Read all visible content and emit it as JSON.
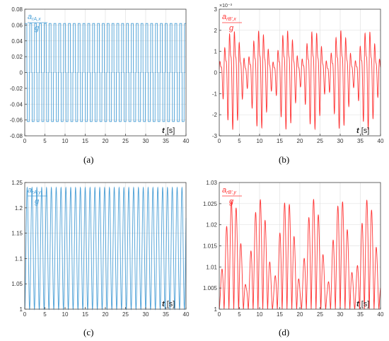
{
  "captions": [
    "(a)",
    "(b)",
    "(c)",
    "(d)"
  ],
  "chart_data": [
    {
      "id": "a",
      "type": "line",
      "title": "",
      "ylabel_num": "a_rA,x",
      "ylabel_den": "g",
      "xlabel_var": "t",
      "xlabel_unit": "[s]",
      "xlim": [
        0,
        40
      ],
      "ylim": [
        -0.08,
        0.08
      ],
      "xticks": [
        "0",
        "5",
        "10",
        "15",
        "20",
        "25",
        "30",
        "35",
        "40"
      ],
      "yticks": [
        "-0.08",
        "-0.06",
        "-0.04",
        "-0.02",
        "0",
        "0.02",
        "0.04",
        "0.06",
        "0.08"
      ],
      "color": "#4a9fd6",
      "grid": true,
      "series": [
        {
          "description": "square-like oscillation between +0.06 and -0.06, period 1.2 s, zero dwell between pulses",
          "amplitude": 0.062,
          "period": 1.2
        }
      ]
    },
    {
      "id": "b",
      "type": "line",
      "title": "",
      "ylabel_num": "a_rB',x",
      "ylabel_den": "g",
      "exponent": "×10⁻³",
      "xlabel_var": "t",
      "xlabel_unit": "[s]",
      "xlim": [
        0,
        40
      ],
      "ylim": [
        -3,
        3
      ],
      "xticks": [
        "0",
        "5",
        "10",
        "15",
        "20",
        "25",
        "30",
        "35",
        "40"
      ],
      "yticks": [
        "-3",
        "-2",
        "-1",
        "0",
        "1",
        "2",
        "3"
      ],
      "color": "#ff3333",
      "grid": true,
      "series": [
        {
          "description": "oscillating signal between about -2.8 and 2.8, beat envelope period ~6.7 s",
          "peak": 2.8
        }
      ]
    },
    {
      "id": "c",
      "type": "line",
      "title": "",
      "ylabel_num": "a_rA,y",
      "ylabel_den": "g",
      "xlabel_var": "t",
      "xlabel_unit": "[s]",
      "xlim": [
        0,
        40
      ],
      "ylim": [
        1,
        1.25
      ],
      "xticks": [
        "0",
        "5",
        "10",
        "15",
        "20",
        "25",
        "30",
        "35",
        "40"
      ],
      "yticks": [
        "1",
        "1.05",
        "1.1",
        "1.15",
        "1.2",
        "1.25"
      ],
      "color": "#4a9fd6",
      "grid": true,
      "series": [
        {
          "description": "periodic oscillation between 1.0 and 1.24, period 1.2 s",
          "min": 1.0,
          "max": 1.24,
          "period": 1.2
        }
      ]
    },
    {
      "id": "d",
      "type": "line",
      "title": "",
      "ylabel_num": "a_rB',y",
      "ylabel_den": "g",
      "xlabel_var": "t",
      "xlabel_unit": "[s]",
      "xlim": [
        0,
        40
      ],
      "ylim": [
        1,
        1.03
      ],
      "xticks": [
        "0",
        "5",
        "10",
        "15",
        "20",
        "25",
        "30",
        "35",
        "40"
      ],
      "yticks": [
        "1",
        "1.005",
        "1.01",
        "1.015",
        "1.02",
        "1.025",
        "1.03"
      ],
      "color": "#ff3333",
      "grid": true,
      "series": [
        {
          "description": "oscillation between 1.0 and ~1.026 with beat envelope period ~6.7 s",
          "min": 1.0,
          "max": 1.026
        }
      ]
    }
  ]
}
